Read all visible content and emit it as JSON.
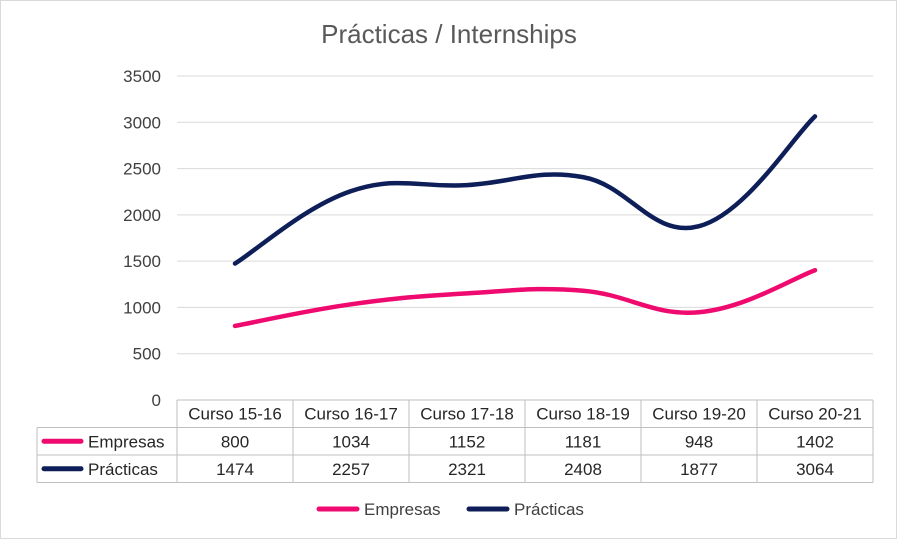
{
  "chart_data": {
    "type": "line",
    "title": "Prácticas / Internships",
    "xlabel": "",
    "ylabel": "",
    "categories": [
      "Curso 15-16",
      "Curso 16-17",
      "Curso 17-18",
      "Curso 18-19",
      "Curso 19-20",
      "Curso 20-21"
    ],
    "ylim": [
      0,
      3500
    ],
    "yticks": [
      "0",
      "500",
      "1000",
      "1500",
      "2000",
      "2500",
      "3000",
      "3500"
    ],
    "grid": true,
    "smooth": true,
    "data_table": true,
    "legend_position": "bottom",
    "series": [
      {
        "name": "Empresas",
        "color": "#ee0a6e",
        "values": [
          800,
          1034,
          1152,
          1181,
          948,
          1402
        ],
        "labels": [
          "800",
          "1034",
          "1152",
          "1181",
          "948",
          "1402"
        ]
      },
      {
        "name": "Prácticas",
        "color": "#0d1e58",
        "values": [
          1474,
          2257,
          2321,
          2408,
          1877,
          3064
        ],
        "labels": [
          "1474",
          "2257",
          "2321",
          "2408",
          "1877",
          "3064"
        ]
      }
    ]
  }
}
